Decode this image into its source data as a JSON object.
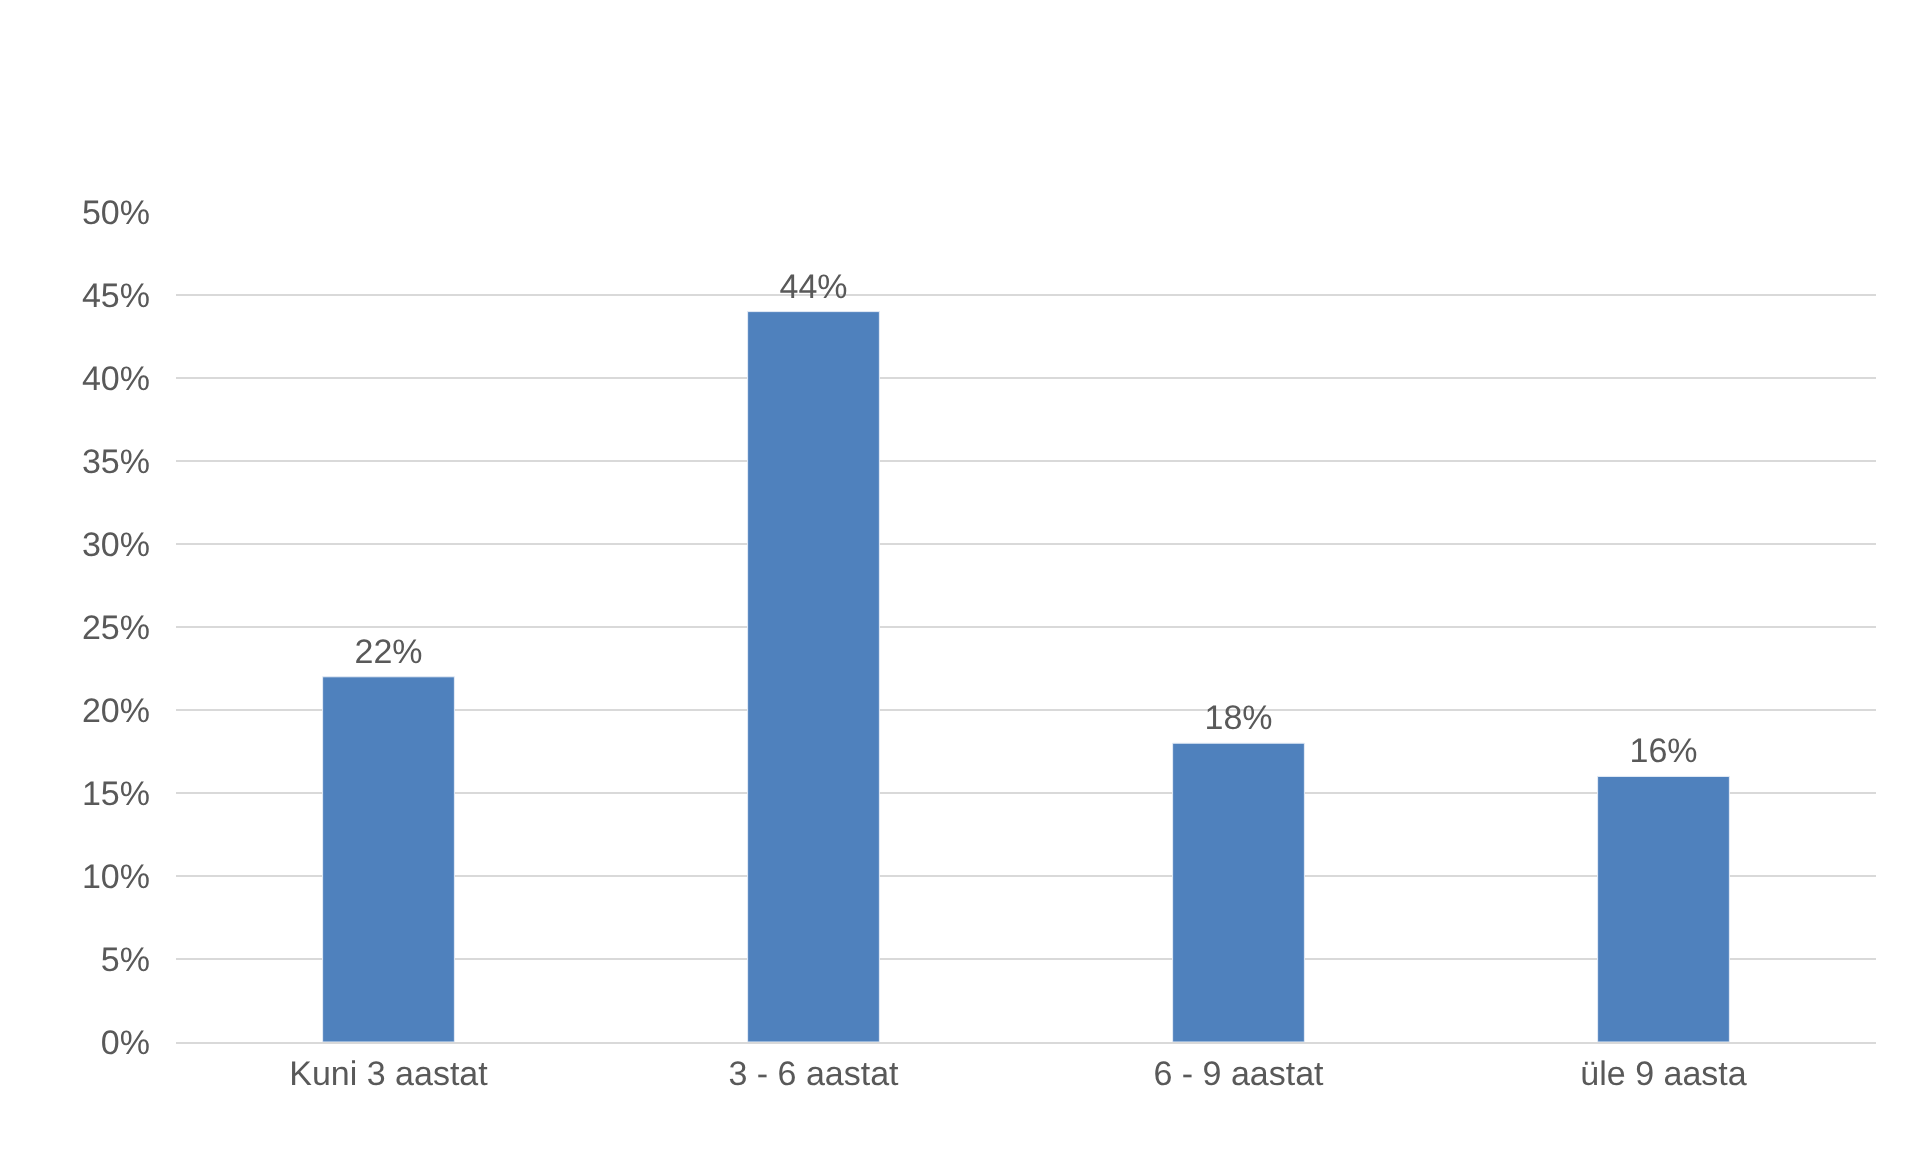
{
  "chart_data": {
    "type": "bar",
    "categories": [
      "Kuni 3 aastat",
      "3 - 6 aastat",
      "6 - 9 aastat",
      "üle 9 aasta"
    ],
    "values": [
      22,
      44,
      18,
      16
    ],
    "value_labels": [
      "22%",
      "44%",
      "18%",
      "16%"
    ],
    "color": "#4f81bd",
    "ylim": [
      0,
      50
    ],
    "yticks": [
      {
        "value": 0,
        "label": "0%"
      },
      {
        "value": 5,
        "label": "5%"
      },
      {
        "value": 10,
        "label": "10%"
      },
      {
        "value": 15,
        "label": "15%"
      },
      {
        "value": 20,
        "label": "20%"
      },
      {
        "value": 25,
        "label": "25%"
      },
      {
        "value": 30,
        "label": "30%"
      },
      {
        "value": 35,
        "label": "35%"
      },
      {
        "value": 40,
        "label": "40%"
      },
      {
        "value": 45,
        "label": "45%"
      },
      {
        "value": 50,
        "label": "50%"
      }
    ],
    "grid": "y"
  }
}
